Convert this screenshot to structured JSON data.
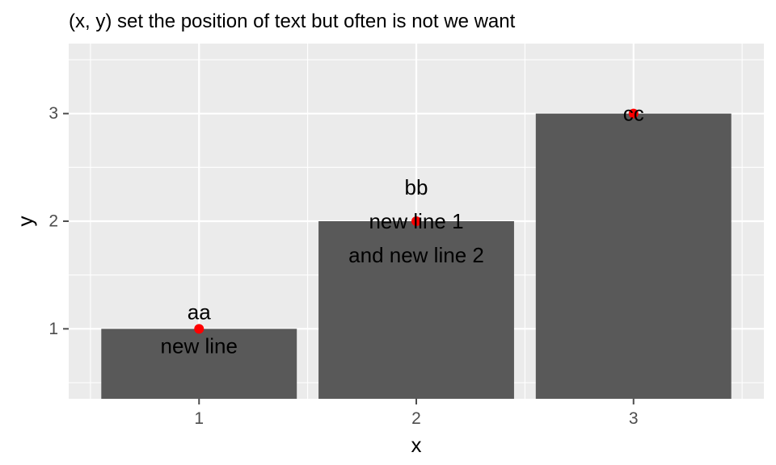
{
  "chart_data": {
    "type": "bar",
    "title": "(x, y) set the position of text but often is not we want",
    "xlabel": "x",
    "ylabel": "y",
    "categories": [
      "1",
      "2",
      "3"
    ],
    "values": [
      1,
      2,
      3
    ],
    "labels": [
      [
        "aa",
        "new line"
      ],
      [
        "bb",
        "new line 1",
        "and new line 2"
      ],
      [
        "cc"
      ]
    ],
    "points": [
      {
        "x": 1,
        "y": 1
      },
      {
        "x": 2,
        "y": 2
      },
      {
        "x": 3,
        "y": 3
      }
    ],
    "ylim": [
      0.35,
      3.65
    ],
    "xlim": [
      0.4,
      3.6
    ],
    "y_ticks": [
      1,
      2,
      3
    ],
    "grid": true,
    "colors": {
      "panel": "#ebebeb",
      "grid": "#ffffff",
      "bar": "#595959",
      "point": "#ff0000",
      "tick": "#4d4d4d"
    }
  }
}
